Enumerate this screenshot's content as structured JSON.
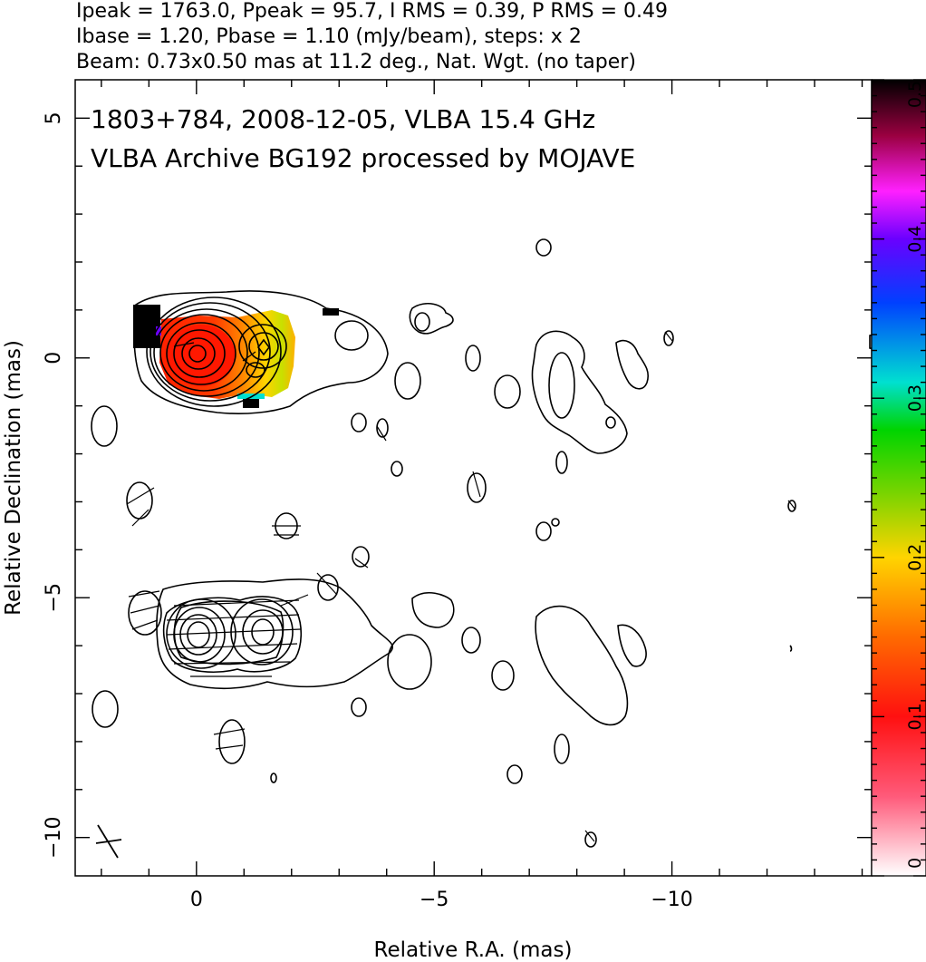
{
  "header": {
    "line1": "Ipeak = 1763.0, Ppeak = 95.7, I RMS = 0.39, P RMS = 0.49",
    "line2": "Ibase = 1.20, Pbase = 1.10 (mJy/beam), steps: x 2",
    "line3": "Beam: 0.73x0.50 mas at 11.2 deg., Nat. Wgt. (no taper)"
  },
  "plot": {
    "title_line1": "1803+784, 2008-12-05, VLBA 15.4 GHz",
    "title_line2": "VLBA Archive BG192 processed by MOJAVE"
  },
  "chart_data": {
    "type": "heatmap",
    "title": "1803+784, 2008-12-05, VLBA 15.4 GHz",
    "subtitle": "VLBA Archive BG192 processed by MOJAVE",
    "xlabel": "Relative R.A. (mas)",
    "ylabel": "Relative Declination (mas)",
    "xlim": [
      2.55,
      -14.2
    ],
    "ylim": [
      -10.8,
      5.8
    ],
    "x_ticks": [
      0,
      -5,
      -10
    ],
    "x_tick_labels": [
      "0",
      "−5",
      "−10"
    ],
    "y_ticks": [
      5,
      0,
      -5,
      -10
    ],
    "y_tick_labels": [
      "5",
      "0",
      "−5",
      "−10"
    ],
    "peak_intensity_mJy_per_beam": 1763.0,
    "peak_polarized_mJy_per_beam": 95.7,
    "I_rms": 0.39,
    "P_rms": 0.49,
    "I_base": 1.2,
    "P_base": 1.1,
    "contour_steps": "x 2",
    "beam": {
      "major_mas": 0.73,
      "minor_mas": 0.5,
      "pa_deg": 11.2
    },
    "weighting": "Nat. Wgt. (no taper)",
    "colorbar": {
      "range": [
        0,
        0.5
      ],
      "ticks": [
        0,
        0.1,
        0.2,
        0.3,
        0.4,
        0.5
      ],
      "tick_labels": [
        "0",
        "0.1",
        "0.2",
        "0.3",
        "0.4",
        "0.5"
      ],
      "orientation": "vertical",
      "placement": "right",
      "colors": [
        "#ffffff",
        "#ff5a7a",
        "#ff1010",
        "#ff6a00",
        "#ffd400",
        "#7ad400",
        "#00d400",
        "#00e0d0",
        "#0040ff",
        "#6a00ff",
        "#ff20ff",
        "#9a0040",
        "#000000"
      ]
    },
    "components": [
      {
        "panel": "upper",
        "x": 0.0,
        "y": 0.0,
        "fpol": 0.1
      },
      {
        "panel": "upper",
        "x": -1.4,
        "y": 0.1,
        "fpol": 0.2
      },
      {
        "panel": "lower",
        "x": 0.0,
        "y": -6.0
      },
      {
        "panel": "lower",
        "x": -1.4,
        "y": -5.9
      }
    ]
  }
}
